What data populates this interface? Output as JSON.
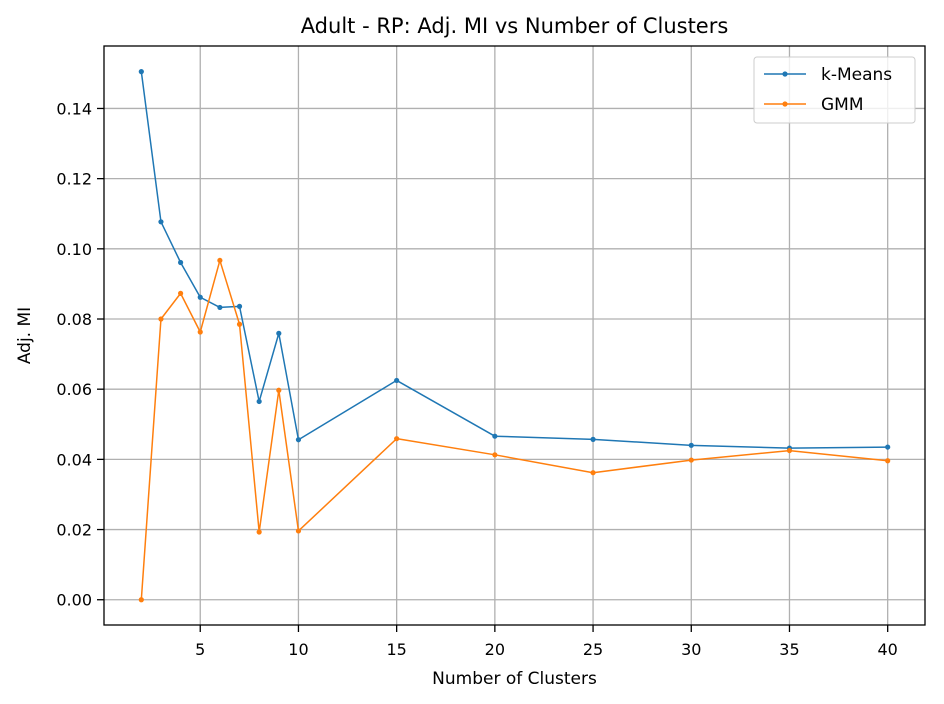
{
  "chart_data": {
    "type": "line",
    "title": "Adult - RP: Adj. MI vs Number of Clusters",
    "xlabel": "Number of Clusters",
    "ylabel": "Adj. MI",
    "xlim": [
      0.1,
      41.9
    ],
    "ylim": [
      -0.0072,
      0.1578
    ],
    "xticks": [
      5,
      10,
      15,
      20,
      25,
      30,
      35,
      40
    ],
    "yticks": [
      0.0,
      0.02,
      0.04,
      0.06,
      0.08,
      0.1,
      0.12,
      0.14
    ],
    "grid": true,
    "legend_position": "top-right",
    "x": [
      2,
      3,
      4,
      5,
      6,
      7,
      8,
      9,
      10,
      15,
      20,
      25,
      30,
      35,
      40
    ],
    "series": [
      {
        "name": "k-Means",
        "color": "#1f77b4",
        "values": [
          0.1505,
          0.1077,
          0.0961,
          0.0862,
          0.0833,
          0.0836,
          0.0565,
          0.0759,
          0.0456,
          0.0625,
          0.0466,
          0.0457,
          0.044,
          0.0432,
          0.0435
        ]
      },
      {
        "name": "GMM",
        "color": "#ff7f0e",
        "values": [
          0.0,
          0.08,
          0.0873,
          0.0763,
          0.0967,
          0.0785,
          0.0193,
          0.0597,
          0.0196,
          0.0459,
          0.0413,
          0.0362,
          0.0398,
          0.0425,
          0.0396
        ]
      }
    ]
  }
}
